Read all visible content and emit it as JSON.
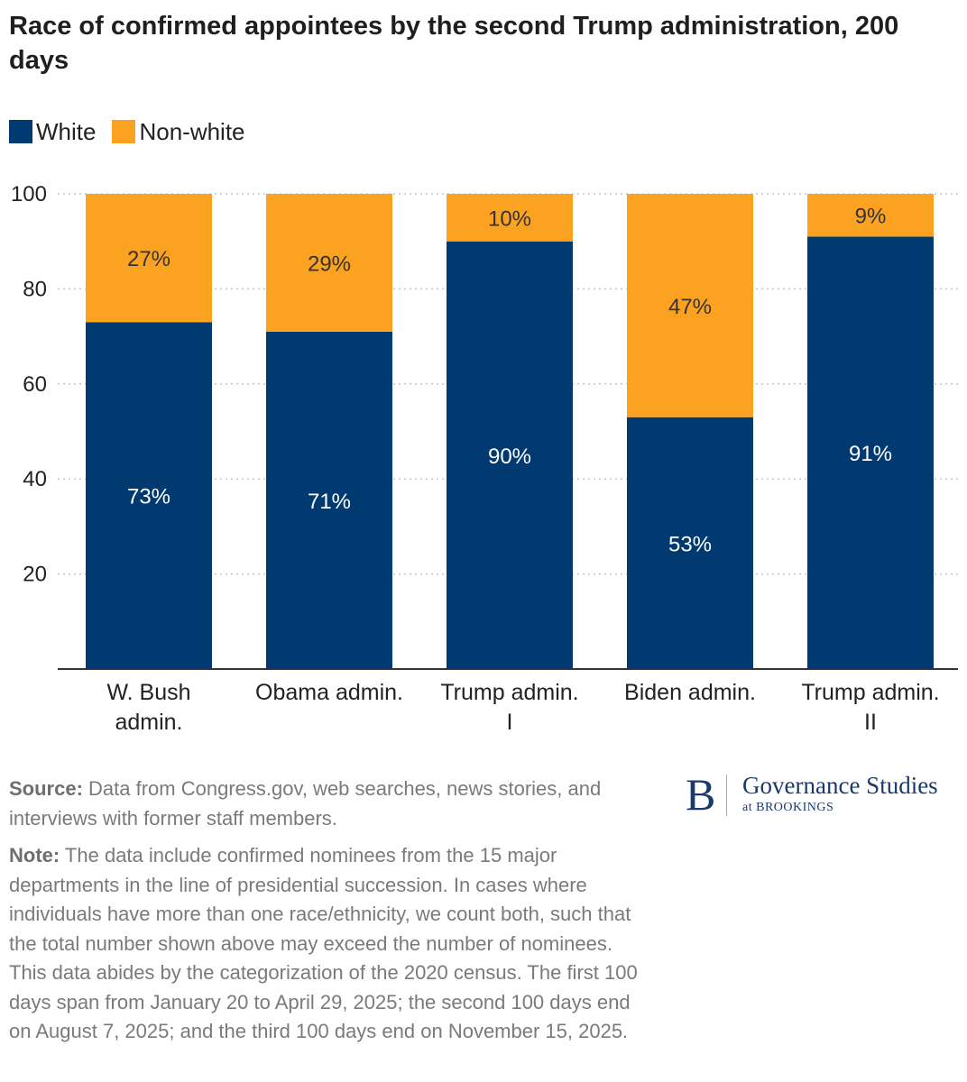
{
  "chart_data": {
    "type": "bar",
    "stacked": true,
    "title": "Race of confirmed appointees by the second Trump administration, 200 days",
    "categories": [
      [
        "W. Bush",
        "admin."
      ],
      [
        "Obama admin."
      ],
      [
        "Trump admin.",
        "I"
      ],
      [
        "Biden admin."
      ],
      [
        "Trump admin.",
        "II"
      ]
    ],
    "series": [
      {
        "name": "White",
        "color": "#003a70",
        "values": [
          73,
          71,
          90,
          53,
          91
        ],
        "labels": [
          "73%",
          "71%",
          "90%",
          "53%",
          "91%"
        ]
      },
      {
        "name": "Non-white",
        "color": "#fca221",
        "values": [
          27,
          29,
          10,
          47,
          9
        ],
        "labels": [
          "27%",
          "29%",
          "10%",
          "47%",
          "9%"
        ]
      }
    ],
    "ylim": [
      0,
      100
    ],
    "yticks": [
      20,
      40,
      60,
      80,
      100
    ],
    "ytick_labels": [
      "20",
      "40",
      "60",
      "80",
      "100"
    ],
    "grid": true,
    "legend_position": "top-left"
  },
  "footer": {
    "source_label": "Source:",
    "source_text": " Data from Congress.gov, web searches, news stories, and interviews with former staff members.",
    "note_label": "Note:",
    "note_text": " The data include confirmed nominees from the 15 major departments in the line of presidential succession. In cases where individuals have more than one race/ethnicity, we count both, such that the total number shown above may exceed the number of nominees. This data abides by the categorization of the 2020 census. The first 100 days span from January 20 to April 29, 2025; the second 100 days end on August 7, 2025; and the third 100 days end on November 15, 2025."
  },
  "logo": {
    "letter": "B",
    "name": "Governance Studies",
    "sub": "at BROOKINGS"
  }
}
